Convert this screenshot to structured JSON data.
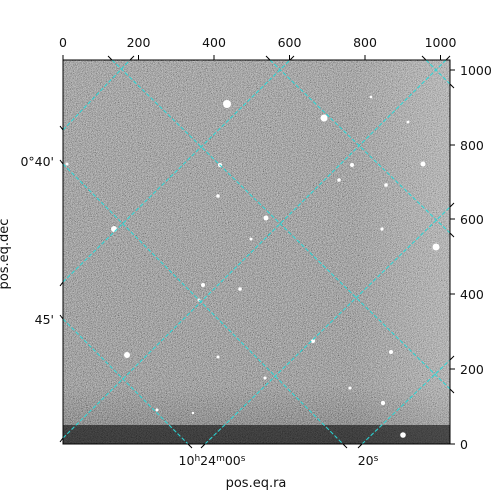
{
  "figure": {
    "pixel_axes": {
      "x_ticks": [
        "0",
        "200",
        "400",
        "600",
        "800",
        "1000"
      ],
      "y_ticks": [
        "0",
        "200",
        "400",
        "600",
        "800",
        "1000"
      ]
    },
    "world_axes": {
      "xlabel": "pos.eq.ra",
      "ylabel": "pos.eq.dec",
      "ra_ticks": [
        {
          "h": "10",
          "m": "24",
          "s": "00",
          "sup_h": "h",
          "sup_m": "m",
          "sup_s": "s"
        },
        {
          "s": "20",
          "sup_s": "s"
        }
      ],
      "dec_ticks": [
        "0°40'",
        "45'"
      ]
    },
    "colors": {
      "grid": "#2ad7d7",
      "background_dark": "#1a1a1a",
      "background_mid": "#6e6e6e"
    }
  }
}
